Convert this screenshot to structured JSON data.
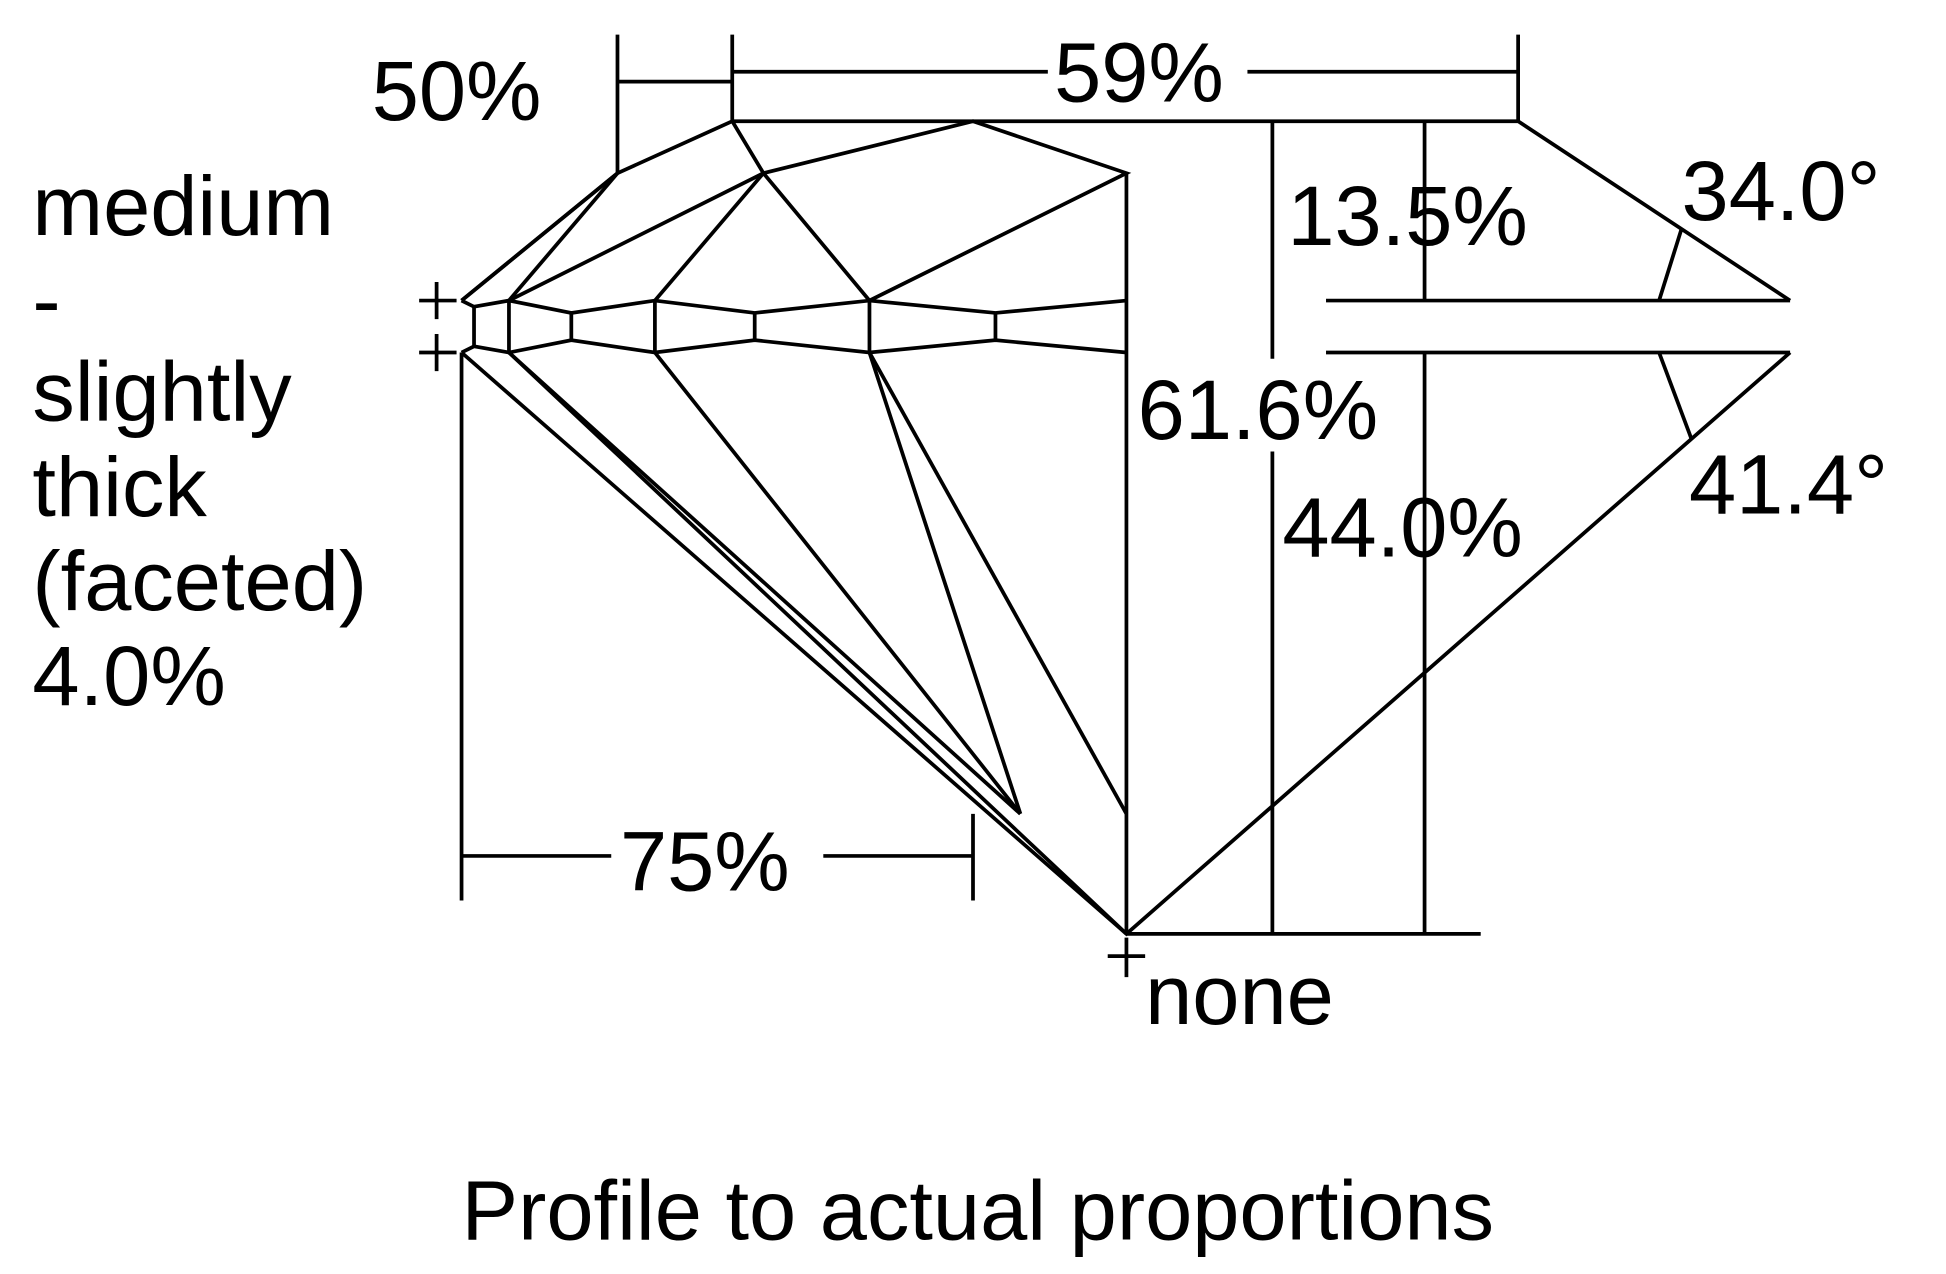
{
  "labels": {
    "table_width_pct": "59%",
    "star_length_pct": "50%",
    "crown_height_pct": "13.5%",
    "crown_angle": "34.0°",
    "total_depth_pct": "61.6%",
    "pavilion_depth_pct": "44.0%",
    "pavilion_angle": "41.4°",
    "lower_half_pct": "75%",
    "culet": "none",
    "girdle_lines": [
      "medium",
      "-",
      "slightly",
      "thick",
      "(faceted)",
      "4.0%"
    ],
    "caption": "Profile to actual proportions"
  },
  "colors": {
    "line": "#000000",
    "background": "#ffffff"
  }
}
